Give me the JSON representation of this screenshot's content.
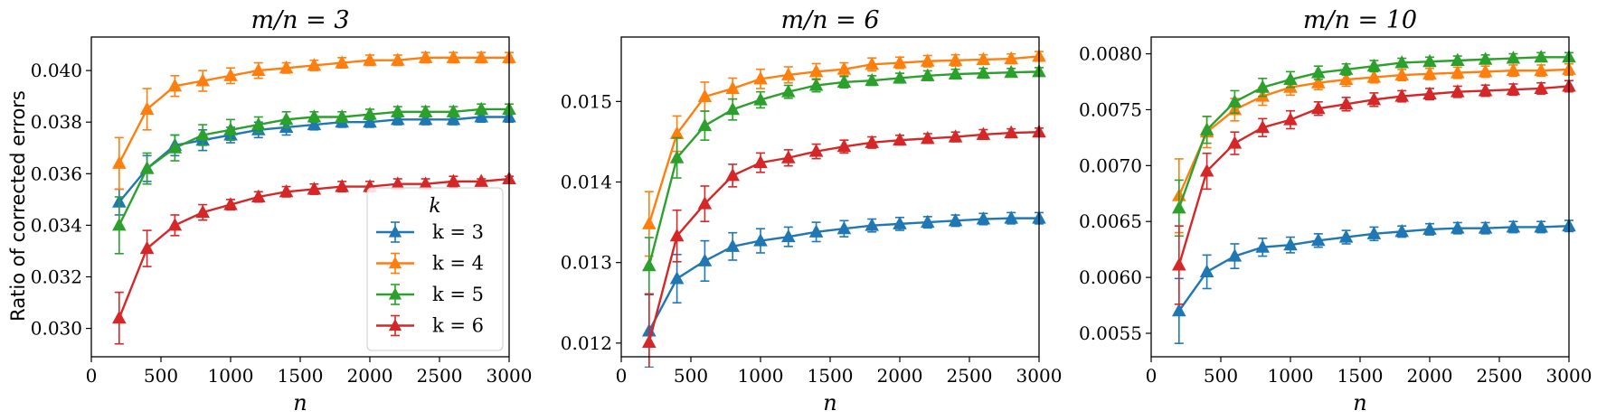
{
  "figure": {
    "ylabel": "Ratio of corrected errors",
    "xlabel": "n"
  },
  "legend": {
    "title": "k",
    "entries": [
      "k = 3",
      "k = 4",
      "k = 5",
      "k = 6"
    ]
  },
  "colors": {
    "k3": "#1f77b4",
    "k4": "#ff7f0e",
    "k5": "#2ca02c",
    "k6": "#d62728"
  },
  "chart_data": [
    {
      "type": "line",
      "title": "m/n = 3",
      "xlabel": "n",
      "ylabel": "Ratio of corrected errors",
      "xlim": [
        0,
        3000
      ],
      "ylim": [
        0.0289,
        0.0413
      ],
      "x_ticks": [
        0,
        500,
        1000,
        1500,
        2000,
        2500,
        3000
      ],
      "y_ticks": [
        0.03,
        0.032,
        0.034,
        0.036,
        0.038,
        0.04
      ],
      "y_tick_labels": [
        "0.030",
        "0.032",
        "0.034",
        "0.036",
        "0.038",
        "0.040"
      ],
      "x": [
        200,
        400,
        600,
        800,
        1000,
        1200,
        1400,
        1600,
        1800,
        2000,
        2200,
        2400,
        2600,
        2800,
        3000
      ],
      "legend_position": "lower-right",
      "series": [
        {
          "name": "k = 3",
          "color": "#1f77b4",
          "values": [
            0.0349,
            0.0362,
            0.0371,
            0.0373,
            0.0375,
            0.0377,
            0.0378,
            0.0379,
            0.038,
            0.038,
            0.0381,
            0.0381,
            0.0381,
            0.0382,
            0.0382
          ],
          "errors": [
            0.0005,
            0.0005,
            0.0004,
            0.0004,
            0.0003,
            0.0003,
            0.0003,
            0.0002,
            0.0002,
            0.0002,
            0.0002,
            0.0002,
            0.0002,
            0.0002,
            0.0002
          ]
        },
        {
          "name": "k = 4",
          "color": "#ff7f0e",
          "values": [
            0.0364,
            0.0385,
            0.0394,
            0.0396,
            0.0398,
            0.04,
            0.0401,
            0.0402,
            0.0403,
            0.0404,
            0.0404,
            0.0405,
            0.0405,
            0.0405,
            0.0405
          ],
          "errors": [
            0.001,
            0.0008,
            0.0004,
            0.0004,
            0.0003,
            0.0003,
            0.0002,
            0.0002,
            0.0002,
            0.0002,
            0.0002,
            0.0002,
            0.0002,
            0.0002,
            0.0002
          ]
        },
        {
          "name": "k = 5",
          "color": "#2ca02c",
          "values": [
            0.034,
            0.0362,
            0.037,
            0.0375,
            0.0377,
            0.0379,
            0.0381,
            0.0382,
            0.0382,
            0.0383,
            0.0384,
            0.0384,
            0.0384,
            0.0385,
            0.0385
          ],
          "errors": [
            0.0011,
            0.0006,
            0.0005,
            0.0004,
            0.0004,
            0.0003,
            0.0003,
            0.0002,
            0.0002,
            0.0002,
            0.0002,
            0.0002,
            0.0002,
            0.0002,
            0.0002
          ]
        },
        {
          "name": "k = 6",
          "color": "#d62728",
          "values": [
            0.0304,
            0.0331,
            0.034,
            0.0345,
            0.0348,
            0.0351,
            0.0353,
            0.0354,
            0.0355,
            0.0355,
            0.0356,
            0.0356,
            0.0357,
            0.0357,
            0.0358
          ],
          "errors": [
            0.001,
            0.0007,
            0.0004,
            0.0003,
            0.0002,
            0.0002,
            0.0002,
            0.0002,
            0.0002,
            0.0002,
            0.0002,
            0.0002,
            0.0002,
            0.0001,
            0.0001
          ]
        }
      ]
    },
    {
      "type": "line",
      "title": "m/n = 6",
      "xlabel": "n",
      "ylabel": "",
      "xlim": [
        0,
        3000
      ],
      "ylim": [
        0.01183,
        0.0158
      ],
      "x_ticks": [
        0,
        500,
        1000,
        1500,
        2000,
        2500,
        3000
      ],
      "y_ticks": [
        0.012,
        0.013,
        0.014,
        0.015
      ],
      "y_tick_labels": [
        "0.012",
        "0.013",
        "0.014",
        "0.015"
      ],
      "x": [
        200,
        400,
        600,
        800,
        1000,
        1200,
        1400,
        1600,
        1800,
        2000,
        2200,
        2400,
        2600,
        2800,
        3000
      ],
      "series": [
        {
          "name": "k = 3",
          "color": "#1f77b4",
          "values": [
            0.01215,
            0.0128,
            0.01302,
            0.0132,
            0.01327,
            0.01332,
            0.01338,
            0.01342,
            0.01346,
            0.01348,
            0.0135,
            0.01352,
            0.01354,
            0.01355,
            0.01355
          ],
          "errors": [
            0.00045,
            0.0003,
            0.00025,
            0.00017,
            0.00015,
            0.00012,
            0.00012,
            0.0001,
            8e-05,
            8e-05,
            7e-05,
            7e-05,
            7e-05,
            7e-05,
            7e-05
          ]
        },
        {
          "name": "k = 4",
          "color": "#ff7f0e",
          "values": [
            0.01348,
            0.0146,
            0.01506,
            0.01516,
            0.01528,
            0.01533,
            0.01537,
            0.0154,
            0.01546,
            0.01548,
            0.0155,
            0.01551,
            0.01552,
            0.01553,
            0.01556
          ],
          "errors": [
            0.0004,
            0.00022,
            0.00018,
            0.00013,
            0.00012,
            0.0001,
            0.0001,
            8e-05,
            8e-05,
            7e-05,
            7e-05,
            7e-05,
            6e-05,
            6e-05,
            6e-05
          ]
        },
        {
          "name": "k = 5",
          "color": "#2ca02c",
          "values": [
            0.01296,
            0.0143,
            0.0147,
            0.0149,
            0.01502,
            0.01512,
            0.0152,
            0.01524,
            0.01526,
            0.01529,
            0.01532,
            0.01534,
            0.01535,
            0.01536,
            0.01537
          ],
          "errors": [
            0.00035,
            0.00025,
            0.00018,
            0.00013,
            0.0001,
            8e-05,
            8e-05,
            7e-05,
            6e-05,
            6e-05,
            6e-05,
            6e-05,
            6e-05,
            5e-05,
            5e-05
          ]
        },
        {
          "name": "k = 6",
          "color": "#d62728",
          "values": [
            0.01201,
            0.01333,
            0.01373,
            0.01408,
            0.01424,
            0.0143,
            0.01438,
            0.01444,
            0.01449,
            0.01452,
            0.01454,
            0.01456,
            0.01459,
            0.01461,
            0.01462
          ],
          "errors": [
            0.0006,
            0.00032,
            0.00022,
            0.00014,
            0.00012,
            0.0001,
            9e-05,
            8e-05,
            7e-05,
            6e-05,
            6e-05,
            6e-05,
            6e-05,
            5e-05,
            5e-05
          ]
        }
      ]
    },
    {
      "type": "line",
      "title": "m/n = 10",
      "xlabel": "n",
      "ylabel": "",
      "xlim": [
        0,
        3000
      ],
      "ylim": [
        0.00529,
        0.00815
      ],
      "x_ticks": [
        0,
        500,
        1000,
        1500,
        2000,
        2500,
        3000
      ],
      "y_ticks": [
        0.0055,
        0.006,
        0.0065,
        0.007,
        0.0075,
        0.008
      ],
      "y_tick_labels": [
        "0.0055",
        "0.0060",
        "0.0065",
        "0.0070",
        "0.0075",
        "0.0080"
      ],
      "x": [
        200,
        400,
        600,
        800,
        1000,
        1200,
        1400,
        1600,
        1800,
        2000,
        2200,
        2400,
        2600,
        2800,
        3000
      ],
      "series": [
        {
          "name": "k = 3",
          "color": "#1f77b4",
          "values": [
            0.0057,
            0.00605,
            0.00619,
            0.00627,
            0.00629,
            0.00633,
            0.00636,
            0.00639,
            0.00641,
            0.00643,
            0.00644,
            0.00644,
            0.00645,
            0.00645,
            0.00646
          ],
          "errors": [
            0.00029,
            0.00015,
            0.00011,
            8e-05,
            7e-05,
            6e-05,
            6e-05,
            6e-05,
            5e-05,
            5e-05,
            5e-05,
            5e-05,
            5e-05,
            5e-05,
            5e-05
          ]
        },
        {
          "name": "k = 4",
          "color": "#ff7f0e",
          "values": [
            0.00673,
            0.0073,
            0.0075,
            0.00762,
            0.0077,
            0.00774,
            0.00777,
            0.00779,
            0.00781,
            0.00782,
            0.00783,
            0.00784,
            0.00785,
            0.00785,
            0.00786
          ],
          "errors": [
            0.00033,
            0.00014,
            0.0001,
            8e-05,
            7e-05,
            6e-05,
            6e-05,
            5e-05,
            5e-05,
            5e-05,
            5e-05,
            5e-05,
            5e-05,
            5e-05,
            5e-05
          ]
        },
        {
          "name": "k = 5",
          "color": "#2ca02c",
          "values": [
            0.00662,
            0.00732,
            0.00757,
            0.0077,
            0.00777,
            0.00783,
            0.00786,
            0.00789,
            0.00792,
            0.00793,
            0.00794,
            0.00795,
            0.00796,
            0.00797,
            0.00797
          ],
          "errors": [
            0.00025,
            0.00012,
            0.0001,
            8e-05,
            7e-05,
            6e-05,
            5e-05,
            5e-05,
            4e-05,
            4e-05,
            4e-05,
            4e-05,
            4e-05,
            4e-05,
            4e-05
          ]
        },
        {
          "name": "k = 6",
          "color": "#d62728",
          "values": [
            0.00611,
            0.00695,
            0.0072,
            0.00734,
            0.00741,
            0.00751,
            0.00755,
            0.00759,
            0.00762,
            0.00764,
            0.00766,
            0.00767,
            0.00768,
            0.00769,
            0.00771
          ],
          "errors": [
            0.00035,
            0.00016,
            0.0001,
            8e-05,
            8e-05,
            6e-05,
            6e-05,
            6e-05,
            5e-05,
            5e-05,
            5e-05,
            5e-05,
            5e-05,
            5e-05,
            5e-05
          ]
        }
      ]
    }
  ]
}
